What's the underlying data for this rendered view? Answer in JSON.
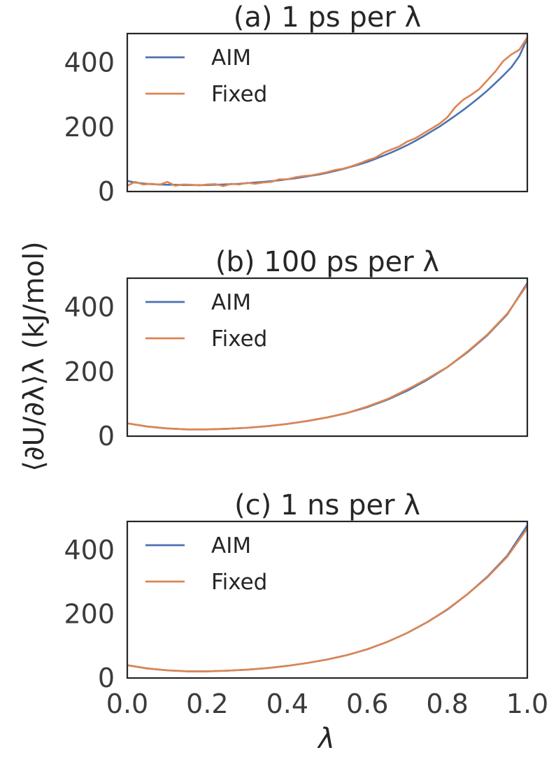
{
  "chart_data": [
    {
      "type": "line",
      "title": "(a) 1 ps per λ",
      "xlim": [
        0.0,
        1.0
      ],
      "ylim": [
        0,
        490
      ],
      "yticks": [
        0,
        200,
        400
      ],
      "show_xticks": false,
      "grid": false,
      "legend_position": "top-left",
      "series": [
        {
          "name": "AIM",
          "color": "#4c72b0",
          "x": [
            0.0,
            0.02,
            0.04,
            0.06,
            0.08,
            0.1,
            0.12,
            0.14,
            0.16,
            0.18,
            0.2,
            0.22,
            0.24,
            0.26,
            0.28,
            0.3,
            0.32,
            0.34,
            0.36,
            0.38,
            0.4,
            0.42,
            0.44,
            0.46,
            0.48,
            0.5,
            0.52,
            0.54,
            0.56,
            0.58,
            0.6,
            0.62,
            0.64,
            0.66,
            0.68,
            0.7,
            0.72,
            0.74,
            0.76,
            0.78,
            0.8,
            0.82,
            0.84,
            0.86,
            0.88,
            0.9,
            0.92,
            0.94,
            0.96,
            0.98,
            1.0
          ],
          "y": [
            33,
            28,
            25,
            23,
            22,
            21,
            21,
            20,
            20,
            20,
            20,
            21,
            22,
            23,
            24,
            26,
            28,
            30,
            32,
            35,
            38,
            41,
            45,
            49,
            53,
            58,
            64,
            70,
            77,
            84,
            92,
            101,
            111,
            121,
            132,
            144,
            157,
            171,
            186,
            201,
            218,
            235,
            253,
            272,
            292,
            313,
            336,
            360,
            385,
            420,
            475
          ]
        },
        {
          "name": "Fixed",
          "color": "#dd8452",
          "x": [
            0.0,
            0.02,
            0.04,
            0.06,
            0.08,
            0.1,
            0.12,
            0.14,
            0.16,
            0.18,
            0.2,
            0.22,
            0.24,
            0.26,
            0.28,
            0.3,
            0.32,
            0.34,
            0.36,
            0.38,
            0.4,
            0.42,
            0.44,
            0.46,
            0.48,
            0.5,
            0.52,
            0.54,
            0.56,
            0.58,
            0.6,
            0.62,
            0.64,
            0.66,
            0.68,
            0.7,
            0.72,
            0.74,
            0.76,
            0.78,
            0.8,
            0.82,
            0.84,
            0.86,
            0.88,
            0.9,
            0.92,
            0.94,
            0.96,
            0.98,
            1.0
          ],
          "y": [
            18,
            30,
            22,
            24,
            21,
            30,
            18,
            22,
            21,
            19,
            22,
            23,
            17,
            24,
            22,
            27,
            24,
            28,
            30,
            38,
            38,
            44,
            48,
            50,
            55,
            60,
            67,
            71,
            78,
            87,
            97,
            105,
            120,
            130,
            140,
            155,
            165,
            180,
            195,
            210,
            230,
            262,
            285,
            300,
            318,
            345,
            372,
            405,
            425,
            440,
            478
          ]
        }
      ]
    },
    {
      "type": "line",
      "title": "(b) 100 ps per λ",
      "xlim": [
        0.0,
        1.0
      ],
      "ylim": [
        0,
        490
      ],
      "yticks": [
        0,
        200,
        400
      ],
      "show_xticks": false,
      "grid": false,
      "legend_position": "top-left",
      "series": [
        {
          "name": "AIM",
          "color": "#4c72b0",
          "x": [
            0.0,
            0.05,
            0.1,
            0.15,
            0.2,
            0.25,
            0.3,
            0.35,
            0.4,
            0.45,
            0.5,
            0.55,
            0.6,
            0.65,
            0.7,
            0.75,
            0.8,
            0.85,
            0.9,
            0.95,
            1.0
          ],
          "y": [
            40,
            30,
            24,
            21,
            21,
            23,
            26,
            31,
            38,
            47,
            58,
            72,
            90,
            113,
            141,
            175,
            214,
            260,
            313,
            378,
            475
          ]
        },
        {
          "name": "Fixed",
          "color": "#dd8452",
          "x": [
            0.0,
            0.05,
            0.1,
            0.15,
            0.2,
            0.25,
            0.3,
            0.35,
            0.4,
            0.45,
            0.5,
            0.55,
            0.6,
            0.65,
            0.7,
            0.72,
            0.75,
            0.78,
            0.8,
            0.85,
            0.9,
            0.95,
            1.0
          ],
          "y": [
            40,
            30,
            24,
            21,
            21,
            23,
            26,
            31,
            38,
            47,
            58,
            72,
            92,
            115,
            145,
            158,
            178,
            200,
            214,
            262,
            315,
            380,
            470
          ]
        }
      ]
    },
    {
      "type": "line",
      "title": "(c) 1 ns per λ",
      "xlim": [
        0.0,
        1.0
      ],
      "ylim": [
        0,
        490
      ],
      "yticks": [
        0,
        200,
        400
      ],
      "xticks": [
        "0.0",
        "0.2",
        "0.4",
        "0.6",
        "0.8",
        "1.0"
      ],
      "show_xticks": true,
      "grid": false,
      "legend_position": "top-left",
      "series": [
        {
          "name": "AIM",
          "color": "#4c72b0",
          "x": [
            0.0,
            0.05,
            0.1,
            0.15,
            0.2,
            0.25,
            0.3,
            0.35,
            0.4,
            0.45,
            0.5,
            0.55,
            0.6,
            0.65,
            0.7,
            0.75,
            0.8,
            0.85,
            0.9,
            0.95,
            1.0
          ],
          "y": [
            40,
            30,
            24,
            21,
            21,
            23,
            26,
            31,
            38,
            47,
            58,
            72,
            90,
            113,
            141,
            175,
            214,
            262,
            317,
            383,
            478
          ]
        },
        {
          "name": "Fixed",
          "color": "#dd8452",
          "x": [
            0.0,
            0.05,
            0.1,
            0.15,
            0.2,
            0.25,
            0.3,
            0.35,
            0.4,
            0.45,
            0.5,
            0.55,
            0.6,
            0.65,
            0.7,
            0.75,
            0.8,
            0.85,
            0.9,
            0.95,
            1.0
          ],
          "y": [
            40,
            30,
            24,
            21,
            21,
            23,
            26,
            31,
            38,
            47,
            58,
            72,
            90,
            113,
            141,
            175,
            215,
            262,
            315,
            380,
            468
          ]
        }
      ]
    }
  ],
  "shared_xlabel": "λ",
  "shared_ylabel": "⟨∂U/∂λ⟩λ (kJ/mol)"
}
